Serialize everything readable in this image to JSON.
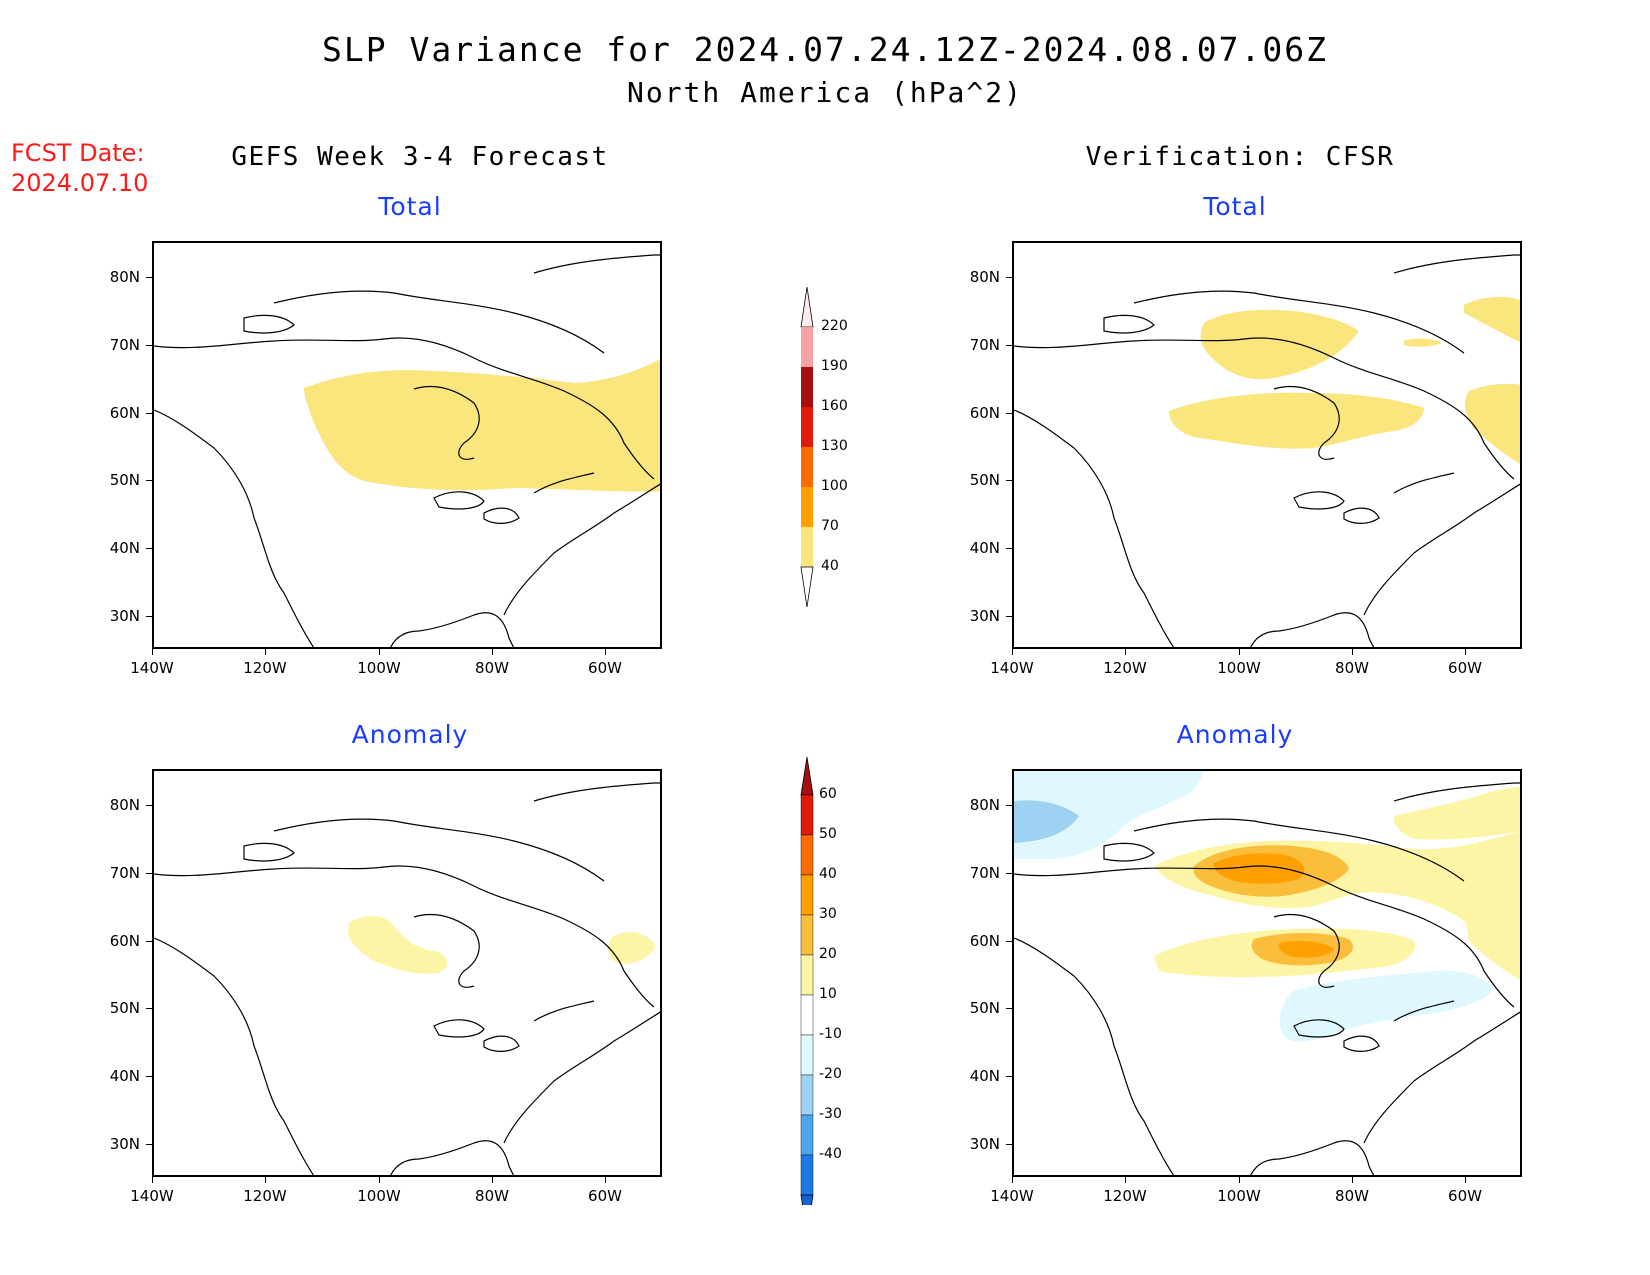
{
  "header": {
    "title": "SLP Variance for 2024.07.24.12Z-2024.08.07.06Z",
    "subtitle": "North America (hPa^2)"
  },
  "fcst_date": {
    "label": "FCST Date:",
    "value": "2024.07.10"
  },
  "columns": {
    "left": "GEFS Week 3-4 Forecast",
    "right": "Verification: CFSR"
  },
  "panels": {
    "top_left_title": "Total",
    "top_right_title": "Total",
    "bottom_left_title": "Anomaly",
    "bottom_right_title": "Anomaly"
  },
  "axes": {
    "lat_labels": [
      "80N",
      "70N",
      "60N",
      "50N",
      "40N",
      "30N"
    ],
    "lon_labels": [
      "140W",
      "120W",
      "100W",
      "80W",
      "60W"
    ]
  },
  "colorbar_total": {
    "labels": [
      "220",
      "190",
      "160",
      "130",
      "100",
      "70",
      "40"
    ],
    "colors": [
      "#f4a2a2",
      "#a50f0f",
      "#e01a0a",
      "#ff6a00",
      "#ffa000",
      "#fbe57d"
    ]
  },
  "colorbar_anomaly": {
    "labels": [
      "60",
      "50",
      "40",
      "30",
      "20",
      "10",
      "-10",
      "-20",
      "-30",
      "-40"
    ],
    "colors": [
      "#e01a0a",
      "#ff6a00",
      "#ffa000",
      "#fbbe3c",
      "#fdf5a6",
      "#ffffff",
      "#dff8ff",
      "#9ed2f2",
      "#4ea4ec",
      "#1e78e6"
    ]
  }
}
